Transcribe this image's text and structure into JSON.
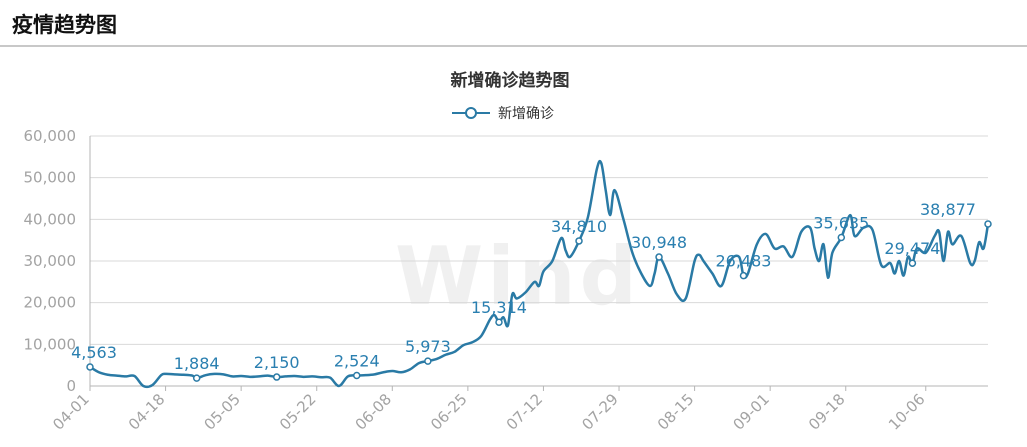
{
  "page": {
    "title": "疫情趋势图"
  },
  "watermark": "Wind",
  "chart_data": {
    "type": "line",
    "title": "新增确诊趋势图",
    "legend": {
      "entries": [
        "新增确诊"
      ],
      "placement": "top-center"
    },
    "ylim": [
      0,
      60000
    ],
    "yticks": [
      "0",
      "10,000",
      "20,000",
      "30,000",
      "40,000",
      "50,000",
      "60,000"
    ],
    "ytick_values": [
      0,
      10000,
      20000,
      30000,
      40000,
      50000,
      60000
    ],
    "xticks": [
      "04-01",
      "04-18",
      "05-05",
      "05-22",
      "06-08",
      "06-25",
      "07-12",
      "07-29",
      "08-15",
      "09-01",
      "09-18",
      "10-06"
    ],
    "xtick_index": [
      0,
      17,
      34,
      51,
      68,
      85,
      102,
      119,
      136,
      153,
      170,
      188
    ],
    "grid": true,
    "colors": {
      "line": "#2a7aa5",
      "label": "#2a7fb0",
      "grid": "#d9d9d9",
      "axis": "#a3a3a3"
    },
    "series": [
      {
        "name": "新增确诊",
        "points": [
          [
            0,
            4563
          ],
          [
            2,
            3300
          ],
          [
            4,
            2700
          ],
          [
            6,
            2500
          ],
          [
            8,
            2300
          ],
          [
            10,
            2400
          ],
          [
            12,
            0
          ],
          [
            14,
            200
          ],
          [
            16,
            2600
          ],
          [
            17,
            2900
          ],
          [
            19,
            2800
          ],
          [
            21,
            2700
          ],
          [
            23,
            2500
          ],
          [
            24,
            1884
          ],
          [
            26,
            2600
          ],
          [
            28,
            2900
          ],
          [
            30,
            2800
          ],
          [
            32,
            2300
          ],
          [
            34,
            2400
          ],
          [
            36,
            2200
          ],
          [
            38,
            2300
          ],
          [
            40,
            2500
          ],
          [
            42,
            2150
          ],
          [
            44,
            2300
          ],
          [
            46,
            2400
          ],
          [
            48,
            2200
          ],
          [
            50,
            2300
          ],
          [
            52,
            2100
          ],
          [
            54,
            2000
          ],
          [
            56,
            0
          ],
          [
            58,
            2300
          ],
          [
            60,
            2524
          ],
          [
            62,
            2600
          ],
          [
            64,
            2800
          ],
          [
            66,
            3300
          ],
          [
            68,
            3600
          ],
          [
            70,
            3300
          ],
          [
            72,
            4000
          ],
          [
            74,
            5500
          ],
          [
            76,
            5973
          ],
          [
            78,
            6500
          ],
          [
            80,
            7500
          ],
          [
            82,
            8200
          ],
          [
            84,
            9800
          ],
          [
            86,
            10500
          ],
          [
            88,
            12000
          ],
          [
            90,
            16000
          ],
          [
            91,
            17000
          ],
          [
            92,
            15314
          ],
          [
            93,
            16500
          ],
          [
            94,
            14500
          ],
          [
            95,
            22000
          ],
          [
            96,
            21000
          ],
          [
            98,
            22500
          ],
          [
            100,
            25000
          ],
          [
            101,
            24000
          ],
          [
            102,
            27500
          ],
          [
            104,
            30000
          ],
          [
            106,
            35500
          ],
          [
            107,
            32500
          ],
          [
            108,
            31000
          ],
          [
            110,
            34810
          ],
          [
            112,
            40500
          ],
          [
            114,
            52000
          ],
          [
            115,
            53500
          ],
          [
            116,
            47000
          ],
          [
            117,
            41000
          ],
          [
            118,
            47000
          ],
          [
            120,
            40000
          ],
          [
            122,
            32000
          ],
          [
            124,
            27000
          ],
          [
            126,
            24000
          ],
          [
            127,
            27000
          ],
          [
            128,
            30948
          ],
          [
            130,
            27000
          ],
          [
            132,
            22000
          ],
          [
            134,
            21000
          ],
          [
            136,
            30000
          ],
          [
            137,
            31500
          ],
          [
            138,
            30000
          ],
          [
            140,
            27000
          ],
          [
            142,
            24000
          ],
          [
            144,
            30000
          ],
          [
            146,
            31000
          ],
          [
            147,
            26483
          ],
          [
            148,
            27000
          ],
          [
            150,
            34000
          ],
          [
            152,
            36500
          ],
          [
            154,
            33000
          ],
          [
            156,
            33500
          ],
          [
            158,
            31000
          ],
          [
            160,
            37000
          ],
          [
            162,
            38000
          ],
          [
            163,
            33000
          ],
          [
            164,
            30000
          ],
          [
            165,
            34000
          ],
          [
            166,
            26000
          ],
          [
            167,
            32000
          ],
          [
            169,
            35635
          ],
          [
            171,
            41000
          ],
          [
            172,
            36000
          ],
          [
            174,
            38000
          ],
          [
            176,
            37500
          ],
          [
            178,
            29000
          ],
          [
            180,
            29500
          ],
          [
            181,
            27000
          ],
          [
            182,
            30000
          ],
          [
            183,
            26500
          ],
          [
            184,
            31000
          ],
          [
            185,
            29474
          ],
          [
            186,
            33000
          ],
          [
            188,
            32000
          ],
          [
            190,
            36000
          ],
          [
            191,
            37000
          ],
          [
            192,
            30000
          ],
          [
            193,
            37000
          ],
          [
            194,
            34000
          ],
          [
            196,
            36000
          ],
          [
            198,
            29500
          ],
          [
            199,
            30000
          ],
          [
            200,
            34500
          ],
          [
            201,
            33000
          ],
          [
            202,
            38877
          ]
        ]
      }
    ],
    "labeled_points": [
      {
        "i": 0,
        "value": 4563,
        "label": "4,563"
      },
      {
        "i": 24,
        "value": 1884,
        "label": "1,884"
      },
      {
        "i": 42,
        "value": 2150,
        "label": "2,150"
      },
      {
        "i": 60,
        "value": 2524,
        "label": "2,524"
      },
      {
        "i": 76,
        "value": 5973,
        "label": "5,973"
      },
      {
        "i": 92,
        "value": 15314,
        "label": "15,314"
      },
      {
        "i": 110,
        "value": 34810,
        "label": "34,810"
      },
      {
        "i": 128,
        "value": 30948,
        "label": "30,948"
      },
      {
        "i": 147,
        "value": 26483,
        "label": "26,483"
      },
      {
        "i": 169,
        "value": 35635,
        "label": "35,635"
      },
      {
        "i": 185,
        "value": 29474,
        "label": "29,474"
      },
      {
        "i": 202,
        "value": 38877,
        "label": "38,877"
      }
    ]
  }
}
